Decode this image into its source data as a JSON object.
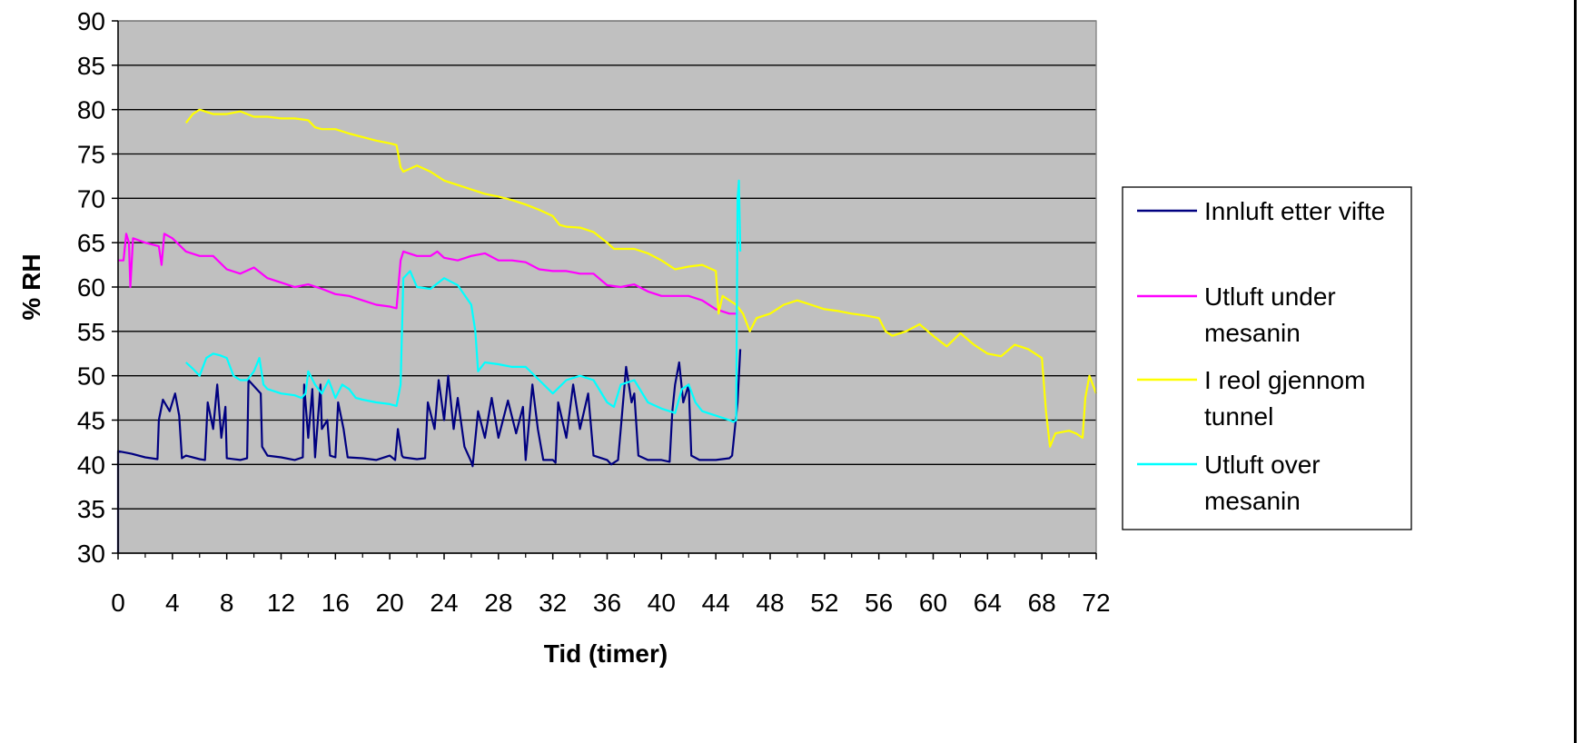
{
  "chart_data": {
    "type": "line",
    "title": "",
    "xlabel": "Tid (timer)",
    "ylabel": "% RH",
    "xlim": [
      0,
      72
    ],
    "ylim": [
      30,
      90
    ],
    "x_ticks": [
      0,
      4,
      8,
      12,
      16,
      20,
      24,
      28,
      32,
      36,
      40,
      44,
      48,
      52,
      56,
      60,
      64,
      68,
      72
    ],
    "y_ticks": [
      30,
      35,
      40,
      45,
      50,
      55,
      60,
      65,
      70,
      75,
      80,
      85,
      90
    ],
    "grid": "horizontal",
    "plot_background": "#c0c0c0",
    "legend_position": "right",
    "series": [
      {
        "name": "Innluft etter vifte",
        "color": "#000080",
        "points": [
          [
            0,
            30
          ],
          [
            0,
            41.5
          ],
          [
            1,
            41.2
          ],
          [
            2,
            40.8
          ],
          [
            2.9,
            40.6
          ],
          [
            3,
            45
          ],
          [
            3.3,
            47.3
          ],
          [
            3.8,
            46
          ],
          [
            4.2,
            48
          ],
          [
            4.5,
            45.5
          ],
          [
            4.7,
            40.7
          ],
          [
            5,
            41
          ],
          [
            6,
            40.6
          ],
          [
            6.4,
            40.5
          ],
          [
            6.6,
            47
          ],
          [
            7,
            44
          ],
          [
            7.3,
            49
          ],
          [
            7.6,
            43
          ],
          [
            7.9,
            46.5
          ],
          [
            8,
            40.7
          ],
          [
            9,
            40.5
          ],
          [
            9.5,
            40.7
          ],
          [
            9.6,
            49.5
          ],
          [
            10.5,
            48
          ],
          [
            10.6,
            42
          ],
          [
            11,
            41
          ],
          [
            12,
            40.8
          ],
          [
            13,
            40.5
          ],
          [
            13.6,
            40.8
          ],
          [
            13.7,
            49
          ],
          [
            14,
            43
          ],
          [
            14.3,
            48.5
          ],
          [
            14.5,
            40.8
          ],
          [
            14.9,
            49
          ],
          [
            15,
            44
          ],
          [
            15.4,
            45
          ],
          [
            15.6,
            41
          ],
          [
            16,
            40.8
          ],
          [
            16.2,
            47
          ],
          [
            16.6,
            44
          ],
          [
            16.9,
            40.8
          ],
          [
            18,
            40.7
          ],
          [
            19,
            40.5
          ],
          [
            20,
            41
          ],
          [
            20.4,
            40.5
          ],
          [
            20.6,
            44
          ],
          [
            20.9,
            41
          ],
          [
            21,
            40.8
          ],
          [
            22,
            40.6
          ],
          [
            22.6,
            40.7
          ],
          [
            22.8,
            47
          ],
          [
            23.3,
            44
          ],
          [
            23.6,
            49.5
          ],
          [
            24,
            45
          ],
          [
            24.3,
            50
          ],
          [
            24.7,
            44
          ],
          [
            25,
            47.5
          ],
          [
            25.5,
            42
          ],
          [
            26,
            40.3
          ],
          [
            26.1,
            39.8
          ],
          [
            26.5,
            46
          ],
          [
            27,
            43
          ],
          [
            27.5,
            47.5
          ],
          [
            28,
            43
          ],
          [
            28.7,
            47.2
          ],
          [
            29.3,
            43.5
          ],
          [
            29.8,
            46.5
          ],
          [
            30,
            40.5
          ],
          [
            30.5,
            49
          ],
          [
            30.9,
            44
          ],
          [
            31.3,
            40.5
          ],
          [
            32,
            40.5
          ],
          [
            32.2,
            40.2
          ],
          [
            32.4,
            47
          ],
          [
            33,
            43
          ],
          [
            33.5,
            49
          ],
          [
            34,
            44
          ],
          [
            34.6,
            48
          ],
          [
            35,
            41
          ],
          [
            36,
            40.5
          ],
          [
            36.3,
            40
          ],
          [
            36.8,
            40.5
          ],
          [
            37,
            44
          ],
          [
            37.4,
            51
          ],
          [
            37.8,
            47
          ],
          [
            38,
            48
          ],
          [
            38.3,
            41
          ],
          [
            39,
            40.5
          ],
          [
            40,
            40.5
          ],
          [
            40.6,
            40.3
          ],
          [
            40.8,
            46
          ],
          [
            41,
            49
          ],
          [
            41.3,
            51.5
          ],
          [
            41.6,
            47
          ],
          [
            42,
            49
          ],
          [
            42.2,
            41
          ],
          [
            42.8,
            40.5
          ],
          [
            44,
            40.5
          ],
          [
            45,
            40.7
          ],
          [
            45.2,
            41
          ],
          [
            45.4,
            44
          ],
          [
            45.6,
            47
          ],
          [
            45.7,
            50
          ],
          [
            45.8,
            53
          ]
        ]
      },
      {
        "name": "Utluft under mesanin",
        "color": "#ff00ff",
        "points": [
          [
            0,
            63
          ],
          [
            0.4,
            63
          ],
          [
            0.6,
            66
          ],
          [
            0.8,
            65
          ],
          [
            0.9,
            60
          ],
          [
            1.1,
            65.5
          ],
          [
            2,
            65
          ],
          [
            3,
            64.6
          ],
          [
            3.2,
            62.5
          ],
          [
            3.4,
            66
          ],
          [
            4,
            65.5
          ],
          [
            5,
            64
          ],
          [
            6,
            63.5
          ],
          [
            7,
            63.5
          ],
          [
            8,
            62
          ],
          [
            9,
            61.5
          ],
          [
            10,
            62.2
          ],
          [
            11,
            61
          ],
          [
            12,
            60.5
          ],
          [
            13,
            60
          ],
          [
            14,
            60.3
          ],
          [
            15,
            59.8
          ],
          [
            16,
            59.2
          ],
          [
            17,
            59
          ],
          [
            18,
            58.5
          ],
          [
            19,
            58
          ],
          [
            20,
            57.8
          ],
          [
            20.5,
            57.6
          ],
          [
            20.8,
            63
          ],
          [
            21,
            64
          ],
          [
            22,
            63.5
          ],
          [
            23,
            63.5
          ],
          [
            23.5,
            64
          ],
          [
            24,
            63.3
          ],
          [
            25,
            63
          ],
          [
            26,
            63.5
          ],
          [
            27,
            63.8
          ],
          [
            28,
            63
          ],
          [
            29,
            63
          ],
          [
            30,
            62.8
          ],
          [
            31,
            62
          ],
          [
            32,
            61.8
          ],
          [
            33,
            61.8
          ],
          [
            34,
            61.5
          ],
          [
            35,
            61.5
          ],
          [
            36,
            60.2
          ],
          [
            37,
            60
          ],
          [
            38,
            60.3
          ],
          [
            39,
            59.5
          ],
          [
            40,
            59
          ],
          [
            41,
            59
          ],
          [
            42,
            59
          ],
          [
            43,
            58.5
          ],
          [
            44,
            57.5
          ],
          [
            45,
            57
          ],
          [
            45.5,
            57
          ]
        ]
      },
      {
        "name": "I reol gjennom tunnel",
        "color": "#ffff00",
        "points": [
          [
            5,
            78.5
          ],
          [
            5.5,
            79.5
          ],
          [
            6,
            80
          ],
          [
            7,
            79.5
          ],
          [
            8,
            79.5
          ],
          [
            9,
            79.8
          ],
          [
            10,
            79.2
          ],
          [
            11,
            79.2
          ],
          [
            12,
            79
          ],
          [
            13,
            79
          ],
          [
            14,
            78.8
          ],
          [
            14.5,
            78
          ],
          [
            15,
            77.8
          ],
          [
            16,
            77.8
          ],
          [
            17,
            77.3
          ],
          [
            18,
            76.9
          ],
          [
            19,
            76.5
          ],
          [
            20,
            76.2
          ],
          [
            20.5,
            76
          ],
          [
            20.8,
            73.5
          ],
          [
            21,
            73
          ],
          [
            22,
            73.7
          ],
          [
            23,
            73
          ],
          [
            24,
            72
          ],
          [
            25,
            71.5
          ],
          [
            26,
            71
          ],
          [
            27,
            70.5
          ],
          [
            28,
            70.2
          ],
          [
            29,
            69.8
          ],
          [
            30,
            69.3
          ],
          [
            31,
            68.7
          ],
          [
            32,
            68
          ],
          [
            32.5,
            67
          ],
          [
            33,
            66.8
          ],
          [
            34,
            66.7
          ],
          [
            35,
            66.2
          ],
          [
            36,
            65
          ],
          [
            36.5,
            64.3
          ],
          [
            37,
            64.3
          ],
          [
            38,
            64.3
          ],
          [
            39,
            63.8
          ],
          [
            40,
            63
          ],
          [
            41,
            62
          ],
          [
            42,
            62.3
          ],
          [
            43,
            62.5
          ],
          [
            44,
            61.8
          ],
          [
            44.2,
            57
          ],
          [
            44.5,
            59
          ],
          [
            45,
            58.5
          ],
          [
            45.5,
            58
          ],
          [
            46,
            57
          ],
          [
            46.5,
            55
          ],
          [
            47,
            56.5
          ],
          [
            48,
            57
          ],
          [
            49,
            58
          ],
          [
            50,
            58.5
          ],
          [
            51,
            58
          ],
          [
            52,
            57.5
          ],
          [
            53,
            57.3
          ],
          [
            54,
            57
          ],
          [
            55,
            56.8
          ],
          [
            56,
            56.5
          ],
          [
            56.5,
            55
          ],
          [
            57,
            54.5
          ],
          [
            58,
            55
          ],
          [
            59,
            55.8
          ],
          [
            60,
            54.5
          ],
          [
            61,
            53.3
          ],
          [
            62,
            54.8
          ],
          [
            63,
            53.5
          ],
          [
            64,
            52.5
          ],
          [
            65,
            52.2
          ],
          [
            66,
            53.5
          ],
          [
            67,
            53
          ],
          [
            68,
            52
          ],
          [
            68.3,
            46
          ],
          [
            68.6,
            42
          ],
          [
            69,
            43.5
          ],
          [
            70,
            43.8
          ],
          [
            70.5,
            43.5
          ],
          [
            71,
            43
          ],
          [
            71.2,
            47.5
          ],
          [
            71.5,
            50
          ],
          [
            72,
            48
          ]
        ]
      },
      {
        "name": "Utluft over mesanin",
        "color": "#00ffff",
        "points": [
          [
            5,
            51.5
          ],
          [
            5.5,
            50.8
          ],
          [
            6,
            50
          ],
          [
            6.5,
            52
          ],
          [
            7,
            52.5
          ],
          [
            7.5,
            52.3
          ],
          [
            8,
            52
          ],
          [
            8.5,
            50
          ],
          [
            9,
            49.5
          ],
          [
            9.5,
            49.5
          ],
          [
            10,
            50.5
          ],
          [
            10.4,
            52
          ],
          [
            10.7,
            49
          ],
          [
            11,
            48.5
          ],
          [
            12,
            48
          ],
          [
            13,
            47.8
          ],
          [
            13.5,
            47.5
          ],
          [
            13.8,
            48
          ],
          [
            14,
            50.5
          ],
          [
            14.5,
            49
          ],
          [
            15,
            48
          ],
          [
            15.5,
            49.5
          ],
          [
            16,
            47.5
          ],
          [
            16.5,
            49
          ],
          [
            17,
            48.5
          ],
          [
            17.5,
            47.5
          ],
          [
            18,
            47.3
          ],
          [
            19,
            47
          ],
          [
            20,
            46.8
          ],
          [
            20.5,
            46.6
          ],
          [
            20.8,
            49
          ],
          [
            21,
            61
          ],
          [
            21.5,
            61.8
          ],
          [
            22,
            60
          ],
          [
            23,
            59.8
          ],
          [
            24,
            61
          ],
          [
            25,
            60.2
          ],
          [
            26,
            58
          ],
          [
            26.3,
            55
          ],
          [
            26.5,
            50.5
          ],
          [
            27,
            51.5
          ],
          [
            28,
            51.3
          ],
          [
            29,
            51
          ],
          [
            30,
            51
          ],
          [
            31,
            49.5
          ],
          [
            32,
            48
          ],
          [
            33,
            49.5
          ],
          [
            34,
            50
          ],
          [
            35,
            49.5
          ],
          [
            36,
            47
          ],
          [
            36.5,
            46.5
          ],
          [
            37,
            49
          ],
          [
            38,
            49.5
          ],
          [
            39,
            47
          ],
          [
            40,
            46.3
          ],
          [
            41,
            45.8
          ],
          [
            41.5,
            48.5
          ],
          [
            42,
            49
          ],
          [
            42.5,
            47
          ],
          [
            43,
            46
          ],
          [
            44,
            45.5
          ],
          [
            45,
            45
          ],
          [
            45.3,
            44.8
          ],
          [
            45.5,
            45
          ],
          [
            45.6,
            70
          ],
          [
            45.7,
            72
          ],
          [
            45.8,
            64
          ]
        ]
      }
    ]
  }
}
